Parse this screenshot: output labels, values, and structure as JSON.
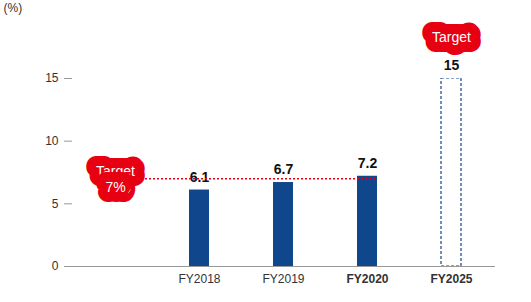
{
  "chart_data": {
    "type": "bar",
    "y_label": "(%)",
    "categories": [
      null,
      "FY2018",
      "FY2019",
      "FY2020",
      "FY2025"
    ],
    "series": [
      {
        "color": "#10468c",
        "values": [
          null,
          6.1,
          6.7,
          7.2,
          null
        ]
      },
      {
        "color": "#10468c",
        "line_style": "dashed",
        "values": [
          null,
          null,
          null,
          null,
          15
        ]
      }
    ],
    "ylim": [
      0,
      15
    ],
    "yticks": [
      0,
      5,
      10,
      15
    ],
    "grid": false,
    "data_labels": true,
    "annotations": [
      {
        "text": [
          "Target",
          "7%"
        ],
        "y": 7,
        "color": "#e60012",
        "line_style": "dotted"
      },
      {
        "text": [
          "Target"
        ],
        "category": "FY2025",
        "color": "#e60012"
      }
    ]
  }
}
